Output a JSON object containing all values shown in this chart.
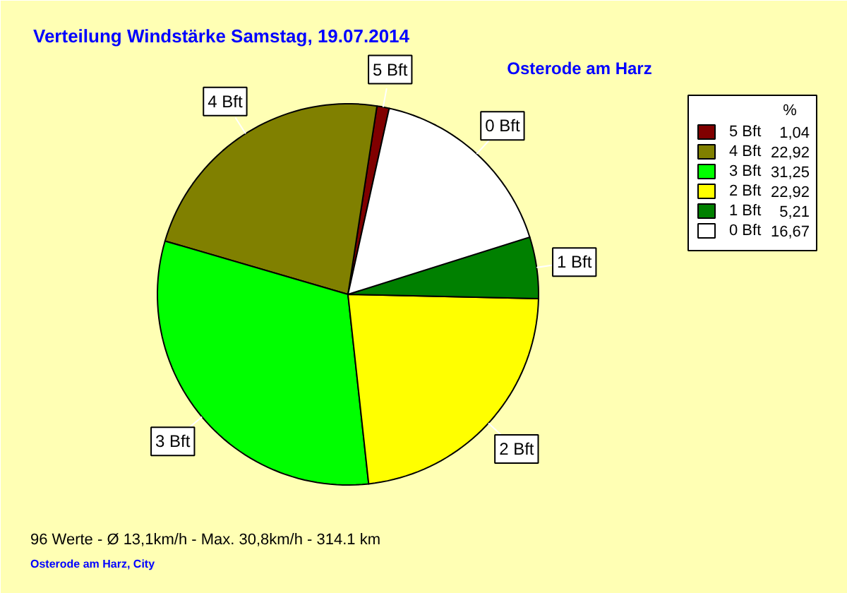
{
  "chart_data": {
    "type": "pie",
    "title": "Verteilung Windstärke  Samstag, 19.07.2014",
    "subtitle": "Osterode am Harz",
    "categories": [
      "5 Bft",
      "4 Bft",
      "3 Bft",
      "2 Bft",
      "1 Bft",
      "0 Bft"
    ],
    "values": [
      1.04,
      22.92,
      31.25,
      22.92,
      5.21,
      16.67
    ],
    "value_labels": [
      "1,04",
      "22,92",
      "31,25",
      "22,92",
      "5,21",
      "16,67"
    ],
    "colors": [
      "#800000",
      "#808000",
      "#00ff00",
      "#ffff00",
      "#008000",
      "#ffffff"
    ],
    "legend": "top right",
    "legend_title": "%",
    "annotations": [
      "96 Werte   -   Ø 13,1km/h  -  Max. 30,8km/h   -   314.1 km",
      "Osterode am Harz, City"
    ]
  }
}
